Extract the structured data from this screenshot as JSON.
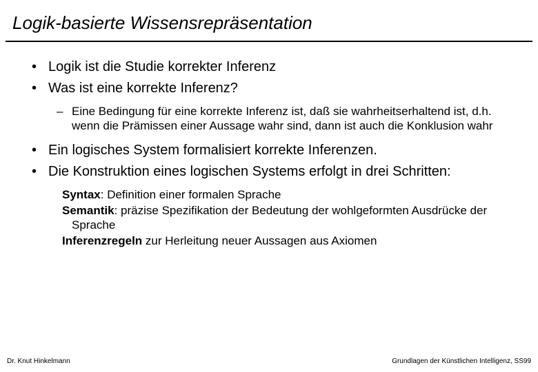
{
  "title": "Logik-basierte Wissensrepräsentation",
  "bullets": {
    "b1": "Logik ist die Studie korrekter Inferenz",
    "b2": "Was ist eine korrekte Inferenz?",
    "b2_sub": "Eine Bedingung für eine korrekte Inferenz ist, daß sie wahrheitserhaltend ist, d.h. wenn die Prämissen einer Aussage wahr sind, dann ist auch die Konklusion wahr",
    "b3": "Ein logisches System formalisiert korrekte Inferenzen.",
    "b4": "Die Konstruktion eines logischen Systems erfolgt in drei Schritten:"
  },
  "defs": {
    "syntax_label": "Syntax",
    "syntax_text": ": Definition einer formalen Sprache",
    "semantik_label": "Semantik",
    "semantik_text": ": präzise Spezifikation der Bedeutung der wohlgeformten Ausdrücke der Sprache",
    "inferenz_label": "Inferenzregeln",
    "inferenz_text": " zur Herleitung neuer Aussagen aus Axiomen"
  },
  "footer": {
    "left": "Dr. Knut Hinkelmann",
    "right": "Grundlagen der Künstlichen Intelligenz, SS99"
  }
}
